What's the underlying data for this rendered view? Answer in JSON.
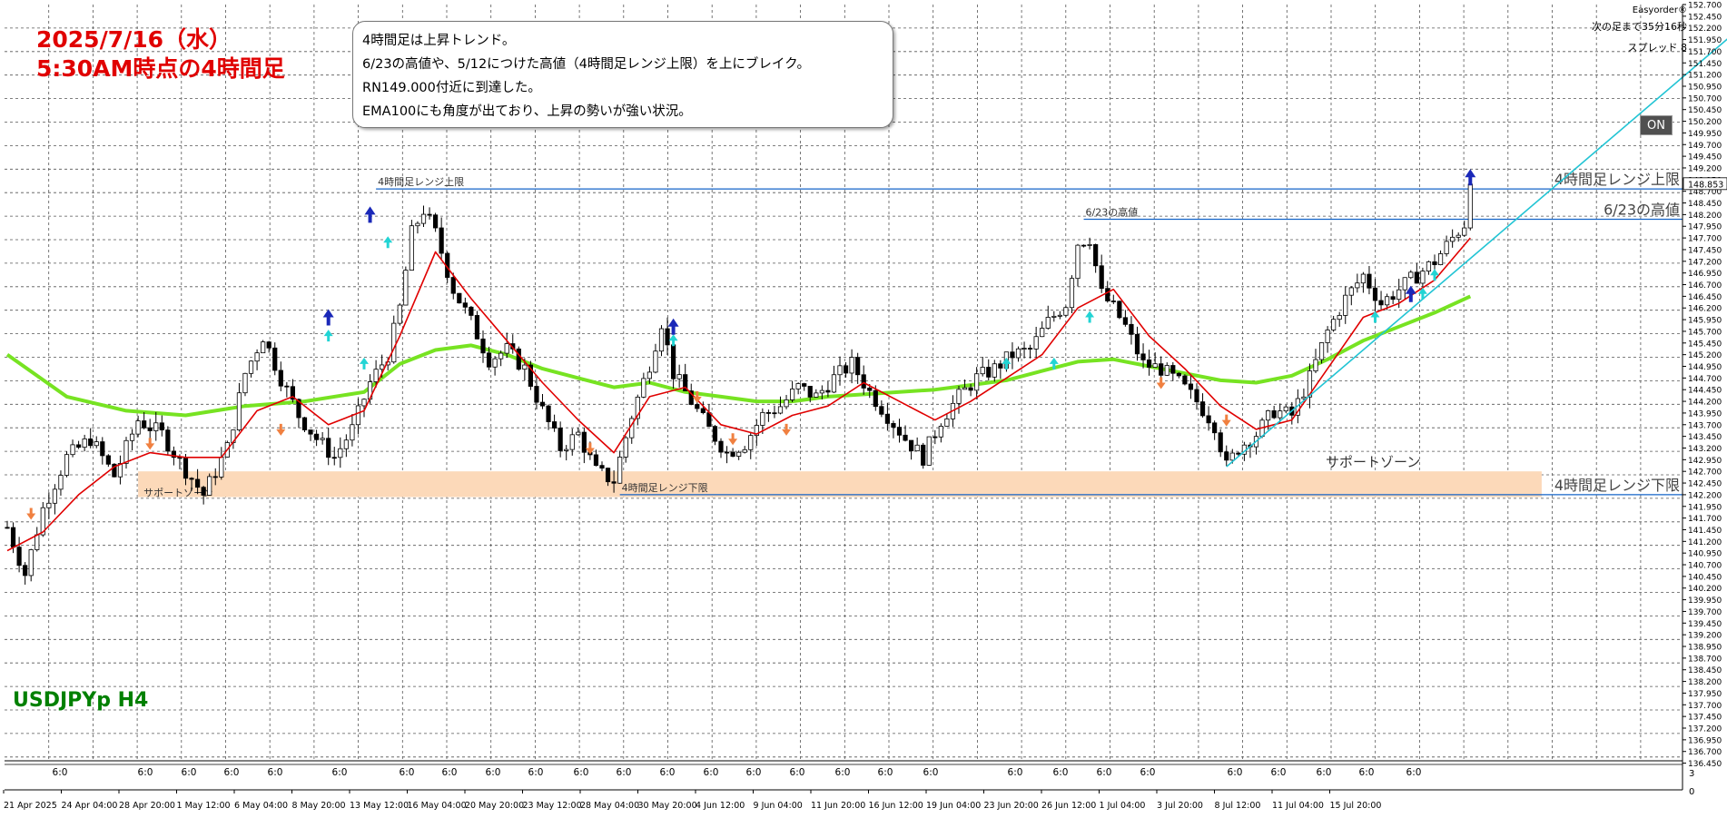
{
  "title": {
    "line1": "2025/7/16（水）",
    "line2": "5:30AM時点の4時間足"
  },
  "notes": [
    "4時間足は上昇トレンド。",
    "6/23の高値や、5/12につけた高値（4時間足レンジ上限）を上にブレイク。",
    "RN149.000付近に到達した。",
    "EMA100にも角度が出ており、上昇の勢いが強い状況。"
  ],
  "symbol_label": "USDJPYp H4",
  "top_right": {
    "brand": "Easyorder®",
    "countdown": "次の足まで35分16秒",
    "spread": "スプレッド 8"
  },
  "on_button": "ON",
  "colors": {
    "ema_fast": "#e00000",
    "ema100": "#77e322",
    "trendline": "#22c4d4",
    "level_line": "#1464c8",
    "support_zone": "#fcd9b9",
    "title": "#e00000",
    "symbol": "#008000"
  },
  "chart_data": {
    "type": "candlestick",
    "symbol": "USDJPYp",
    "timeframe": "H4",
    "ylim": [
      136.5,
      152.7
    ],
    "y_ticks": [
      "152.700",
      "152.450",
      "152.200",
      "151.950",
      "151.700",
      "151.450",
      "151.200",
      "150.950",
      "150.700",
      "150.450",
      "150.200",
      "149.950",
      "149.700",
      "149.450",
      "149.200",
      "148.950",
      "148.700",
      "148.450",
      "148.200",
      "147.950",
      "147.700",
      "147.450",
      "147.200",
      "146.950",
      "146.700",
      "146.450",
      "146.200",
      "145.950",
      "145.700",
      "145.450",
      "145.200",
      "144.950",
      "144.700",
      "144.450",
      "144.200",
      "143.950",
      "143.700",
      "143.450",
      "143.200",
      "142.950",
      "142.700",
      "142.450",
      "142.200",
      "141.950",
      "141.700",
      "141.450",
      "141.200",
      "140.950",
      "140.700",
      "140.450",
      "140.200",
      "139.950",
      "139.700",
      "139.450",
      "139.200",
      "138.950",
      "138.700",
      "138.450",
      "138.200",
      "137.950",
      "137.700",
      "137.450",
      "137.200",
      "136.950",
      "136.700",
      "136.450"
    ],
    "current_price_label": "148.853",
    "current_price": 148.853,
    "x_date_labels": [
      "21 Apr 2025",
      "24 Apr 04:00",
      "28 Apr 20:00",
      "1 May 12:00",
      "6 May 04:00",
      "8 May 20:00",
      "13 May 12:00",
      "16 May 04:00",
      "20 May 20:00",
      "23 May 12:00",
      "28 May 04:00",
      "30 May 20:00",
      "4 Jun 12:00",
      "9 Jun 04:00",
      "11 Jun 20:00",
      "16 Jun 12:00",
      "19 Jun 04:00",
      "23 Jun 20:00",
      "26 Jun 12:00",
      "1 Jul 04:00",
      "3 Jul 20:00",
      "8 Jul 12:00",
      "11 Jul 04:00",
      "15 Jul 20:00"
    ],
    "x_hour_label": "6:0",
    "x_hour_label_count": 30,
    "sub_axis_labels": [
      "3",
      "0"
    ],
    "price_path": [
      [
        0,
        141.5
      ],
      [
        3,
        140.5
      ],
      [
        6,
        141.9
      ],
      [
        10,
        143.0
      ],
      [
        14,
        143.4
      ],
      [
        18,
        142.6
      ],
      [
        22,
        143.8
      ],
      [
        26,
        143.5
      ],
      [
        29,
        142.9
      ],
      [
        33,
        142.2
      ],
      [
        37,
        143.2
      ],
      [
        40,
        144.8
      ],
      [
        43,
        145.6
      ],
      [
        46,
        144.7
      ],
      [
        49,
        143.9
      ],
      [
        52,
        143.4
      ],
      [
        55,
        143.0
      ],
      [
        58,
        143.6
      ],
      [
        61,
        144.6
      ],
      [
        64,
        145.2
      ],
      [
        66,
        146.2
      ],
      [
        68,
        147.8
      ],
      [
        70,
        148.3
      ],
      [
        72,
        147.8
      ],
      [
        75,
        146.6
      ],
      [
        78,
        145.9
      ],
      [
        81,
        145.1
      ],
      [
        84,
        145.3
      ],
      [
        87,
        144.9
      ],
      [
        90,
        144.0
      ],
      [
        93,
        143.2
      ],
      [
        96,
        143.5
      ],
      [
        99,
        142.7
      ],
      [
        102,
        142.5
      ],
      [
        105,
        143.9
      ],
      [
        108,
        145.0
      ],
      [
        110,
        145.9
      ],
      [
        112,
        144.8
      ],
      [
        115,
        144.2
      ],
      [
        118,
        143.6
      ],
      [
        121,
        143.1
      ],
      [
        124,
        143.3
      ],
      [
        127,
        143.9
      ],
      [
        130,
        144.1
      ],
      [
        133,
        144.5
      ],
      [
        136,
        144.3
      ],
      [
        139,
        144.7
      ],
      [
        142,
        145.0
      ],
      [
        145,
        144.4
      ],
      [
        148,
        143.9
      ],
      [
        151,
        143.4
      ],
      [
        154,
        143.0
      ],
      [
        157,
        143.8
      ],
      [
        160,
        144.3
      ],
      [
        163,
        144.7
      ],
      [
        166,
        144.9
      ],
      [
        169,
        145.2
      ],
      [
        172,
        145.3
      ],
      [
        175,
        145.9
      ],
      [
        178,
        146.3
      ],
      [
        180,
        147.6
      ],
      [
        182,
        147.7
      ],
      [
        184,
        146.5
      ],
      [
        186,
        146.2
      ],
      [
        188,
        145.8
      ],
      [
        191,
        145.0
      ],
      [
        194,
        144.9
      ],
      [
        197,
        144.6
      ],
      [
        200,
        144.2
      ],
      [
        203,
        143.7
      ],
      [
        205,
        142.8
      ],
      [
        207,
        143.2
      ],
      [
        210,
        143.5
      ],
      [
        213,
        144.0
      ],
      [
        216,
        143.9
      ],
      [
        219,
        144.7
      ],
      [
        222,
        145.7
      ],
      [
        225,
        146.4
      ],
      [
        228,
        146.9
      ],
      [
        231,
        146.3
      ],
      [
        234,
        146.6
      ],
      [
        237,
        146.9
      ],
      [
        240,
        147.2
      ],
      [
        243,
        147.7
      ],
      [
        245,
        148.0
      ],
      [
        246,
        148.853
      ]
    ],
    "ema_fast_path": [
      [
        0,
        141.0
      ],
      [
        6,
        141.4
      ],
      [
        12,
        142.2
      ],
      [
        18,
        142.8
      ],
      [
        24,
        143.1
      ],
      [
        30,
        143.0
      ],
      [
        36,
        143.0
      ],
      [
        42,
        144.0
      ],
      [
        48,
        144.3
      ],
      [
        54,
        143.7
      ],
      [
        60,
        144.0
      ],
      [
        66,
        145.6
      ],
      [
        72,
        147.4
      ],
      [
        78,
        146.4
      ],
      [
        84,
        145.5
      ],
      [
        90,
        144.6
      ],
      [
        96,
        143.8
      ],
      [
        102,
        143.1
      ],
      [
        108,
        144.3
      ],
      [
        114,
        144.5
      ],
      [
        120,
        143.7
      ],
      [
        126,
        143.5
      ],
      [
        132,
        143.9
      ],
      [
        138,
        144.1
      ],
      [
        144,
        144.6
      ],
      [
        150,
        144.2
      ],
      [
        156,
        143.8
      ],
      [
        162,
        144.2
      ],
      [
        168,
        144.7
      ],
      [
        174,
        145.2
      ],
      [
        180,
        146.2
      ],
      [
        186,
        146.6
      ],
      [
        192,
        145.6
      ],
      [
        198,
        144.9
      ],
      [
        204,
        144.1
      ],
      [
        210,
        143.6
      ],
      [
        216,
        143.8
      ],
      [
        222,
        144.9
      ],
      [
        228,
        146.0
      ],
      [
        234,
        146.3
      ],
      [
        240,
        146.8
      ],
      [
        246,
        147.7
      ]
    ],
    "ema100_path": [
      [
        0,
        145.2
      ],
      [
        10,
        144.3
      ],
      [
        20,
        144.0
      ],
      [
        30,
        143.9
      ],
      [
        40,
        144.1
      ],
      [
        50,
        144.2
      ],
      [
        60,
        144.4
      ],
      [
        66,
        145.0
      ],
      [
        72,
        145.3
      ],
      [
        78,
        145.4
      ],
      [
        84,
        145.2
      ],
      [
        90,
        144.9
      ],
      [
        96,
        144.7
      ],
      [
        102,
        144.5
      ],
      [
        108,
        144.6
      ],
      [
        114,
        144.4
      ],
      [
        120,
        144.3
      ],
      [
        126,
        144.2
      ],
      [
        132,
        144.2
      ],
      [
        138,
        144.3
      ],
      [
        144,
        144.35
      ],
      [
        150,
        144.4
      ],
      [
        156,
        144.45
      ],
      [
        162,
        144.55
      ],
      [
        168,
        144.65
      ],
      [
        174,
        144.85
      ],
      [
        180,
        145.05
      ],
      [
        186,
        145.1
      ],
      [
        192,
        144.95
      ],
      [
        198,
        144.8
      ],
      [
        204,
        144.65
      ],
      [
        210,
        144.6
      ],
      [
        216,
        144.75
      ],
      [
        222,
        145.1
      ],
      [
        228,
        145.5
      ],
      [
        234,
        145.8
      ],
      [
        240,
        146.1
      ],
      [
        246,
        146.45
      ]
    ],
    "trendline": {
      "from": [
        205,
        142.8
      ],
      "to": [
        296,
        152.7
      ]
    },
    "levels": [
      {
        "label": "4時間足レンジ上限",
        "price": 148.75,
        "from_bar": 62,
        "right_label": "4時間足レンジ上限"
      },
      {
        "label": "6/23の高値",
        "price": 148.1,
        "from_bar": 181,
        "right_label": "6/23の高値"
      },
      {
        "label": "4時間足レンジ下限",
        "price": 142.2,
        "from_bar": 103,
        "right_label": "4時間足レンジ下限"
      }
    ],
    "support_zone": {
      "label": "サポートゾーン",
      "price_top": 142.7,
      "price_bottom": 142.15,
      "from_bar": 22,
      "to_bar": 258
    },
    "buy_arrows": [
      [
        54,
        145.6
      ],
      [
        60,
        145.0
      ],
      [
        64,
        147.6
      ],
      [
        112,
        145.5
      ],
      [
        168,
        145.0
      ],
      [
        176,
        145.0
      ],
      [
        182,
        146.0
      ],
      [
        230,
        146.0
      ],
      [
        238,
        146.5
      ],
      [
        240,
        146.9
      ]
    ],
    "sell_arrows": [
      [
        4,
        141.8
      ],
      [
        24,
        143.3
      ],
      [
        46,
        143.6
      ],
      [
        98,
        143.2
      ],
      [
        116,
        144.3
      ],
      [
        122,
        143.4
      ],
      [
        131,
        143.6
      ],
      [
        194,
        144.6
      ],
      [
        205,
        143.8
      ]
    ],
    "big_buy_arrows": [
      [
        54,
        146.0
      ],
      [
        61,
        148.2
      ],
      [
        112,
        145.8
      ],
      [
        236,
        146.5
      ],
      [
        246,
        149.0
      ]
    ]
  }
}
